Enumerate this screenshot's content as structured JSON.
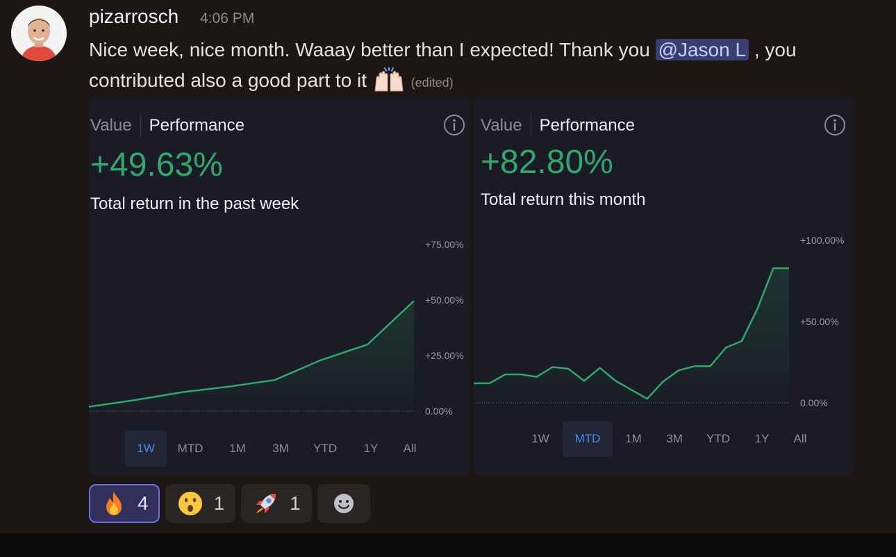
{
  "message": {
    "author": "pizarrosch",
    "timestamp": "4:06 PM",
    "text_before": "Nice week, nice month. Waaay better than I expected! Thank you ",
    "mention": "@Jason L",
    "text_after": " , you contributed also a good part to it",
    "edited": "(edited)",
    "inline_emoji": "raised-hands-icon"
  },
  "cards": [
    {
      "tab_value": "Value",
      "tab_performance": "Performance",
      "big_value": "+49.63%",
      "subtitle": "Total return in the past week",
      "ranges": [
        "1W",
        "MTD",
        "1M",
        "3M",
        "YTD",
        "1Y",
        "All"
      ],
      "active_range": "1W",
      "y_ticks": [
        "+75.00%",
        "+50.00%",
        "+25.00%",
        "0.00%"
      ]
    },
    {
      "tab_value": "Value",
      "tab_performance": "Performance",
      "big_value": "+82.80%",
      "subtitle": "Total return this month",
      "ranges": [
        "1W",
        "MTD",
        "1M",
        "3M",
        "YTD",
        "1Y",
        "All"
      ],
      "active_range": "MTD",
      "y_ticks": [
        "+100.00%",
        "+50.00%",
        "0.00%"
      ]
    }
  ],
  "chart_data": [
    {
      "type": "area",
      "title": "",
      "xlabel": "",
      "ylabel": "",
      "ylim": [
        0,
        75
      ],
      "y_tick_values": [
        75,
        50,
        25,
        0
      ],
      "series": [
        {
          "x": [
            0,
            1,
            2,
            3,
            4,
            5,
            6,
            7
          ],
          "values": [
            2,
            5,
            8.5,
            11,
            14,
            23,
            30,
            49.63
          ]
        }
      ],
      "grid": false
    },
    {
      "type": "area",
      "title": "",
      "xlabel": "",
      "ylabel": "",
      "ylim": [
        0,
        100
      ],
      "y_tick_values": [
        100,
        50,
        0
      ],
      "series": [
        {
          "x": [
            0,
            1,
            2,
            3,
            4,
            5,
            6,
            7,
            8,
            9,
            10,
            11,
            12,
            13,
            14,
            15,
            16,
            17,
            18,
            19,
            20
          ],
          "values": [
            12,
            12,
            17.5,
            17.5,
            16,
            22,
            21,
            13.5,
            21.5,
            13.5,
            8,
            2.5,
            13,
            20,
            22.5,
            22.5,
            34,
            38,
            58,
            82.8,
            82.8
          ]
        }
      ],
      "grid": false
    }
  ],
  "reactions": [
    {
      "emoji": "fire-icon",
      "count": "4",
      "active": true
    },
    {
      "emoji": "astonished-face-icon",
      "count": "1",
      "active": false
    },
    {
      "emoji": "rocket-icon",
      "count": "1",
      "active": false
    },
    {
      "emoji": "add-reaction-icon",
      "count": "",
      "active": false
    }
  ],
  "colors": {
    "positive": "#2ea86c",
    "accent": "#3f8ff0",
    "mention_bg": "#3b3f6e",
    "reaction_active_border": "#6c6ee8"
  }
}
